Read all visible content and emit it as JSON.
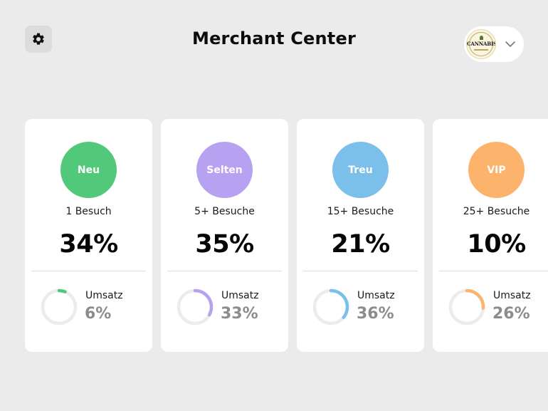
{
  "header": {
    "title": "Merchant Center",
    "settings_icon": "gear-icon",
    "account_logo_text": "CANNABIS",
    "account_menu_icon": "chevron-down-icon"
  },
  "segments": [
    {
      "name": "Neu",
      "visits": "1 Besuch",
      "share": "34%",
      "revenue_label": "Umsatz",
      "revenue": "6%",
      "revenue_fraction": 0.06,
      "color": "#52c97a"
    },
    {
      "name": "Selten",
      "visits": "5+ Besuche",
      "share": "35%",
      "revenue_label": "Umsatz",
      "revenue": "33%",
      "revenue_fraction": 0.33,
      "color": "#b6a2f0"
    },
    {
      "name": "Treu",
      "visits": "15+ Besuche",
      "share": "21%",
      "revenue_label": "Umsatz",
      "revenue": "36%",
      "revenue_fraction": 0.36,
      "color": "#7bbfeb"
    },
    {
      "name": "VIP",
      "visits": "25+ Besuche",
      "share": "10%",
      "revenue_label": "Umsatz",
      "revenue": "26%",
      "revenue_fraction": 0.26,
      "color": "#fcb46c"
    }
  ]
}
